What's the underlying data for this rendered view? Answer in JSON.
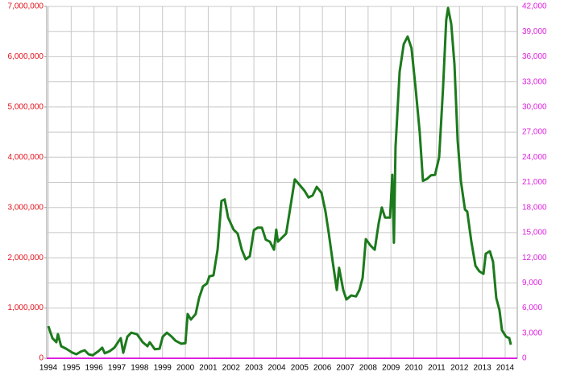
{
  "chart_data": {
    "type": "line",
    "x": [
      1994.0,
      1994.18,
      1994.35,
      1994.42,
      1994.56,
      1994.78,
      1995.06,
      1995.23,
      1995.41,
      1995.59,
      1995.76,
      1995.94,
      1996.19,
      1996.36,
      1996.47,
      1996.68,
      1996.89,
      1997.17,
      1997.28,
      1997.46,
      1997.63,
      1997.88,
      1998.13,
      1998.34,
      1998.44,
      1998.66,
      1998.87,
      1999.01,
      1999.19,
      1999.4,
      1999.57,
      1999.82,
      2000.0,
      2000.1,
      2000.24,
      2000.45,
      2000.6,
      2000.77,
      2000.95,
      2001.05,
      2001.23,
      2001.41,
      2001.58,
      2001.72,
      2001.87,
      2002.11,
      2002.29,
      2002.47,
      2002.64,
      2002.82,
      2003.0,
      2003.17,
      2003.35,
      2003.52,
      2003.7,
      2003.88,
      2003.98,
      2004.05,
      2004.23,
      2004.41,
      2004.58,
      2004.79,
      2005.0,
      2005.22,
      2005.39,
      2005.57,
      2005.75,
      2005.96,
      2006.13,
      2006.28,
      2006.45,
      2006.63,
      2006.73,
      2006.91,
      2007.05,
      2007.26,
      2007.47,
      2007.62,
      2007.76,
      2007.9,
      2008.11,
      2008.29,
      2008.46,
      2008.6,
      2008.74,
      2008.96,
      2009.06,
      2009.13,
      2009.2,
      2009.38,
      2009.56,
      2009.73,
      2009.9,
      2010.08,
      2010.26,
      2010.4,
      2010.58,
      2010.75,
      2010.93,
      2011.11,
      2011.28,
      2011.42,
      2011.5,
      2011.64,
      2011.78,
      2011.92,
      2012.06,
      2012.24,
      2012.34,
      2012.52,
      2012.7,
      2012.87,
      2013.05,
      2013.15,
      2013.33,
      2013.47,
      2013.61,
      2013.75,
      2013.86,
      2014.04,
      2014.18,
      2014.25
    ],
    "series": [
      {
        "color": "#1c7a1c",
        "values": [
          640000,
          400000,
          320000,
          480000,
          240000,
          190000,
          110000,
          80000,
          130000,
          160000,
          80000,
          60000,
          140000,
          210000,
          100000,
          140000,
          210000,
          400000,
          110000,
          430000,
          510000,
          480000,
          320000,
          240000,
          320000,
          180000,
          190000,
          430000,
          510000,
          430000,
          350000,
          290000,
          300000,
          880000,
          770000,
          880000,
          1200000,
          1430000,
          1490000,
          1630000,
          1650000,
          2160000,
          3130000,
          3160000,
          2800000,
          2560000,
          2480000,
          2160000,
          1970000,
          2030000,
          2550000,
          2600000,
          2600000,
          2360000,
          2320000,
          2160000,
          2560000,
          2320000,
          2400000,
          2480000,
          2960000,
          3560000,
          3450000,
          3330000,
          3200000,
          3240000,
          3410000,
          3290000,
          2930000,
          2480000,
          1920000,
          1360000,
          1800000,
          1360000,
          1170000,
          1250000,
          1230000,
          1360000,
          1600000,
          2370000,
          2240000,
          2160000,
          2680000,
          3000000,
          2800000,
          2800000,
          3650000,
          2300000,
          4200000,
          5700000,
          6250000,
          6400000,
          6170000,
          5370000,
          4490000,
          3530000,
          3570000,
          3640000,
          3650000,
          4000000,
          5370000,
          6730000,
          6970000,
          6650000,
          5850000,
          4330000,
          3530000,
          2960000,
          2920000,
          2320000,
          1840000,
          1730000,
          1680000,
          2080000,
          2130000,
          1920000,
          1200000,
          960000,
          560000,
          430000,
          400000,
          270000
        ]
      }
    ],
    "xlim": [
      1993.93,
      2014.53
    ],
    "xticks": [
      1994,
      1995,
      1996,
      1997,
      1998,
      1999,
      2000,
      2001,
      2002,
      2003,
      2004,
      2005,
      2006,
      2007,
      2008,
      2009,
      2010,
      2011,
      2012,
      2013,
      2014
    ],
    "ylim": [
      0,
      7000000
    ],
    "yticks": [
      0,
      {
        "value": 1000000,
        "label": "1,000,000"
      },
      {
        "value": 2000000,
        "label": "2,000,000"
      },
      {
        "value": 3000000,
        "label": "3,000,000"
      },
      {
        "value": 4000000,
        "label": "4,000,000"
      },
      {
        "value": 5000000,
        "label": "5,000,000"
      },
      {
        "value": 6000000,
        "label": "6,000,000"
      },
      {
        "value": 7000000,
        "label": "7,000,000"
      }
    ],
    "y2lim": [
      0,
      42000
    ],
    "y2ticks": [
      0,
      {
        "value": 3000,
        "label": "3,000"
      },
      {
        "value": 6000,
        "label": "6,000"
      },
      {
        "value": 9000,
        "label": "9,000"
      },
      {
        "value": 12000,
        "label": "12,000"
      },
      {
        "value": 15000,
        "label": "15,000"
      },
      {
        "value": 18000,
        "label": "18,000"
      },
      {
        "value": 21000,
        "label": "21,000"
      },
      {
        "value": 24000,
        "label": "24,000"
      },
      {
        "value": 27000,
        "label": "27,000"
      },
      {
        "value": 30000,
        "label": "30,000"
      },
      {
        "value": 33000,
        "label": "33,000"
      },
      {
        "value": 36000,
        "label": "36,000"
      },
      {
        "value": 39000,
        "label": "39,000"
      },
      {
        "value": 42000,
        "label": "42,000"
      }
    ],
    "ytick_color": "#e0101a",
    "y2tick_color": "#e020e0",
    "grid": true
  }
}
